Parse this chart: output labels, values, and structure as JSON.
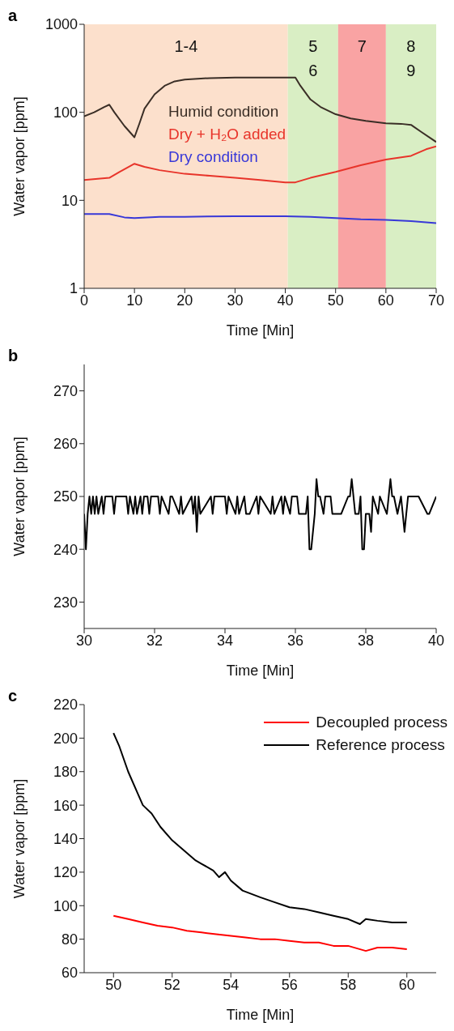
{
  "chart_data": [
    {
      "type": "line",
      "title": "a",
      "xlabel": "Time [Min]",
      "ylabel": "Water vapor [ppm]",
      "log": true,
      "xlim": [
        0,
        70
      ],
      "xticks": [
        0,
        10,
        20,
        30,
        40,
        50,
        60,
        70
      ],
      "ylim": [
        1,
        1000
      ],
      "yticks": [
        1,
        10,
        100,
        1000
      ],
      "legend": "top",
      "bands": [
        {
          "axis": "x",
          "from": 0,
          "to": 40.5,
          "label": "1-4",
          "color": "#fce0cc"
        },
        {
          "axis": "x",
          "from": 40.5,
          "to": 50.5,
          "label": "5\n6",
          "color": "#d9eec4"
        },
        {
          "axis": "x",
          "from": 50.5,
          "to": 60,
          "label": "7",
          "color": "#f9a3a3"
        },
        {
          "axis": "x",
          "from": 60,
          "to": 70,
          "label": "8\n9",
          "color": "#d9eec4"
        }
      ],
      "series": [
        {
          "name": "Humid condition",
          "color": "#3a2e26",
          "x": [
            0,
            2,
            4,
            5,
            6,
            8,
            10,
            11,
            12,
            14,
            16,
            18,
            20,
            25,
            30,
            35,
            40,
            42,
            43,
            45,
            47,
            50,
            53,
            56,
            60,
            63,
            65,
            67,
            70
          ],
          "values": [
            90,
            100,
            115,
            122,
            100,
            70,
            52,
            75,
            110,
            160,
            200,
            225,
            235,
            245,
            248,
            248,
            248,
            248,
            200,
            140,
            115,
            95,
            85,
            80,
            75,
            74,
            72,
            60,
            46
          ]
        },
        {
          "name": "Dry + H₂O added",
          "color": "#e8342a",
          "x": [
            0,
            5,
            7,
            10,
            12,
            15,
            20,
            25,
            30,
            35,
            40,
            42,
            45,
            50,
            55,
            60,
            65,
            68,
            70
          ],
          "values": [
            17,
            18,
            21,
            26,
            24,
            22,
            20,
            19,
            18,
            17,
            16,
            16,
            18,
            21,
            25,
            29,
            32,
            38,
            41
          ]
        },
        {
          "name": "Dry condition",
          "color": "#3838d8",
          "x": [
            0,
            5,
            8,
            10,
            15,
            20,
            30,
            40,
            45,
            50,
            55,
            60,
            65,
            70
          ],
          "values": [
            7.0,
            7.0,
            6.4,
            6.3,
            6.5,
            6.5,
            6.6,
            6.6,
            6.5,
            6.3,
            6.1,
            6.0,
            5.8,
            5.5
          ]
        }
      ]
    },
    {
      "type": "line",
      "title": "b",
      "xlabel": "Time [Min]",
      "ylabel": "Water vapor [ppm]",
      "xlim": [
        30,
        40
      ],
      "xticks": [
        30,
        32,
        34,
        36,
        38,
        40
      ],
      "ylim": [
        225,
        275
      ],
      "yticks": [
        230,
        240,
        250,
        260,
        270
      ],
      "series": [
        {
          "color": "#000000",
          "x": [
            30,
            30.05,
            30.1,
            30.15,
            30.2,
            30.25,
            30.3,
            30.35,
            30.4,
            30.5,
            30.55,
            30.6,
            30.8,
            30.85,
            30.9,
            31.2,
            31.25,
            31.3,
            31.4,
            31.45,
            31.5,
            31.6,
            31.65,
            31.7,
            31.8,
            31.85,
            31.9,
            32.1,
            32.15,
            32.2,
            32.4,
            32.45,
            32.5,
            32.7,
            32.75,
            32.8,
            33.05,
            33.1,
            33.15,
            33.2,
            33.25,
            33.3,
            33.6,
            33.65,
            33.7,
            34.0,
            34.05,
            34.1,
            34.3,
            34.35,
            34.4,
            34.55,
            34.6,
            34.7,
            34.9,
            34.95,
            35.0,
            35.3,
            35.35,
            35.4,
            35.6,
            35.65,
            35.7,
            35.85,
            35.9,
            36.05,
            36.1,
            36.3,
            36.35,
            36.4,
            36.45,
            36.55,
            36.6,
            36.65,
            36.7,
            36.8,
            36.85,
            37.0,
            37.05,
            37.3,
            37.5,
            37.55,
            37.6,
            37.7,
            37.8,
            37.85,
            37.9,
            37.95,
            38.0,
            38.1,
            38.15,
            38.2,
            38.35,
            38.4,
            38.6,
            38.65,
            38.7,
            38.75,
            38.8,
            38.9,
            39.0,
            39.05,
            39.1,
            39.15,
            39.2,
            39.5,
            39.75,
            39.8,
            40
          ],
          "values": [
            246.7,
            240,
            246.7,
            250,
            246.7,
            250,
            246.7,
            250,
            246.7,
            250,
            246.7,
            250,
            250,
            246.7,
            250,
            250,
            246.7,
            250,
            246.7,
            250,
            246.7,
            250,
            246.7,
            250,
            250,
            246.7,
            250,
            250,
            246.7,
            250,
            246.7,
            250,
            250,
            246.7,
            250,
            246.7,
            250,
            246.7,
            250,
            243.3,
            250,
            246.7,
            250,
            246.7,
            250,
            250,
            246.7,
            250,
            246.7,
            250,
            246.7,
            250,
            246.7,
            246.7,
            250,
            246.7,
            250,
            246.7,
            250,
            246.7,
            250,
            246.7,
            250,
            246.7,
            250,
            250,
            246.7,
            246.7,
            250,
            240,
            240,
            246.7,
            253.3,
            250,
            250,
            246.7,
            250,
            250,
            246.7,
            246.7,
            250,
            250,
            253.3,
            246.7,
            246.7,
            250,
            240,
            240,
            246.7,
            246.7,
            243.3,
            250,
            246.7,
            250,
            246.7,
            250,
            253.3,
            250,
            250,
            246.7,
            250,
            246.7,
            243.3,
            246.7,
            250,
            250,
            246.7,
            246.7,
            250
          ]
        }
      ]
    },
    {
      "type": "line",
      "title": "c",
      "xlabel": "Time [Min]",
      "ylabel": "Water vapor [ppm]",
      "xlim": [
        49,
        61
      ],
      "xticks": [
        50,
        52,
        54,
        56,
        58,
        60
      ],
      "ylim": [
        60,
        220
      ],
      "yticks": [
        60,
        80,
        100,
        120,
        140,
        160,
        180,
        200,
        220
      ],
      "legend": "top right",
      "series": [
        {
          "name": "Decoupled process",
          "color": "#ff0000",
          "x": [
            50,
            50.5,
            51,
            51.5,
            52,
            52.5,
            53,
            53.5,
            54,
            54.5,
            55,
            55.5,
            56,
            56.5,
            57,
            57.5,
            58,
            58.6,
            59,
            59.5,
            60
          ],
          "values": [
            94,
            92,
            90,
            88,
            87,
            85,
            84,
            83,
            82,
            81,
            80,
            80,
            79,
            78,
            78,
            76,
            76,
            73,
            75,
            75,
            74
          ]
        },
        {
          "name": "Reference process",
          "color": "#000000",
          "x": [
            50,
            50.2,
            50.5,
            50.8,
            51,
            51.3,
            51.6,
            52,
            52.4,
            52.8,
            53,
            53.4,
            53.6,
            53.8,
            54,
            54.4,
            55,
            55.5,
            56,
            56.5,
            57,
            57.5,
            58,
            58.4,
            58.6,
            59,
            59.5,
            60
          ],
          "values": [
            203,
            195,
            180,
            168,
            160,
            155,
            147,
            139,
            133,
            127,
            125,
            121,
            117,
            120,
            115,
            109,
            105,
            102,
            99,
            98,
            96,
            94,
            92,
            89,
            92,
            91,
            90,
            90
          ]
        }
      ]
    }
  ]
}
